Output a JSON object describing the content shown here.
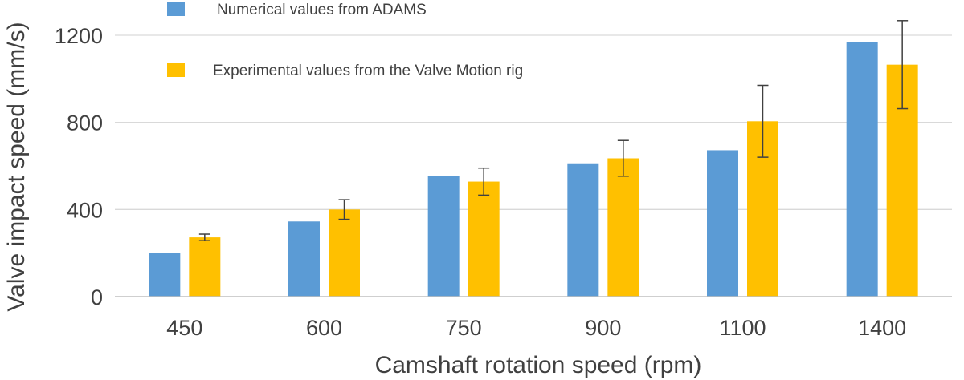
{
  "chart_data": {
    "type": "bar",
    "xlabel": "Camshaft rotation speed (rpm)",
    "ylabel": "Valve impact speed (mm/s)",
    "categories": [
      "450",
      "600",
      "750",
      "900",
      "1100",
      "1400"
    ],
    "ylim": [
      0,
      1200
    ],
    "yticks": [
      "0",
      "400",
      "800",
      "1200"
    ],
    "grid": true,
    "legend_position": "top-left",
    "series": [
      {
        "name": "Numerical values from ADAMS",
        "color": "#5B9BD5",
        "values": [
          200,
          345,
          555,
          612,
          672,
          1168
        ]
      },
      {
        "name": "Experimental values from the Valve Motion rig",
        "color": "#FFC000",
        "values": [
          272,
          400,
          528,
          635,
          805,
          1065
        ],
        "error": [
          15,
          45,
          62,
          82,
          165,
          202
        ]
      }
    ]
  }
}
